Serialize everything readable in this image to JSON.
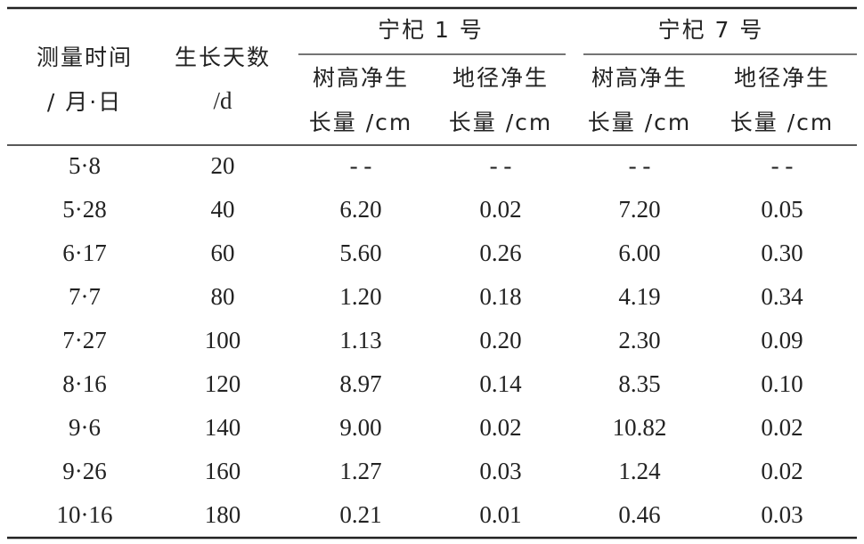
{
  "table": {
    "header": {
      "columns": [
        [
          "测量时间",
          "/ 月·日"
        ],
        [
          "生长天数",
          "/d"
        ]
      ],
      "groups": [
        {
          "name": "宁杞 1 号",
          "columns": [
            [
              "树高净生",
              "长量 /cm"
            ],
            [
              "地径净生",
              "长量 /cm"
            ]
          ]
        },
        {
          "name": "宁杞 7 号",
          "columns": [
            [
              "树高净生",
              "长量 /cm"
            ],
            [
              "地径净生",
              "长量 /cm"
            ]
          ]
        }
      ]
    },
    "rows": [
      [
        "5·8",
        "20",
        "- -",
        "- -",
        "- -",
        "- -"
      ],
      [
        "5·28",
        "40",
        "6.20",
        "0.02",
        "7.20",
        "0.05"
      ],
      [
        "6·17",
        "60",
        "5.60",
        "0.26",
        "6.00",
        "0.30"
      ],
      [
        "7·7",
        "80",
        "1.20",
        "0.18",
        "4.19",
        "0.34"
      ],
      [
        "7·27",
        "100",
        "1.13",
        "0.20",
        "2.30",
        "0.09"
      ],
      [
        "8·16",
        "120",
        "8.97",
        "0.14",
        "8.35",
        "0.10"
      ],
      [
        "9·6",
        "140",
        "9.00",
        "0.02",
        "10.82",
        "0.02"
      ],
      [
        "9·26",
        "160",
        "1.27",
        "0.03",
        "1.24",
        "0.02"
      ],
      [
        "10·16",
        "180",
        "0.21",
        "0.01",
        "0.46",
        "0.03"
      ]
    ]
  }
}
